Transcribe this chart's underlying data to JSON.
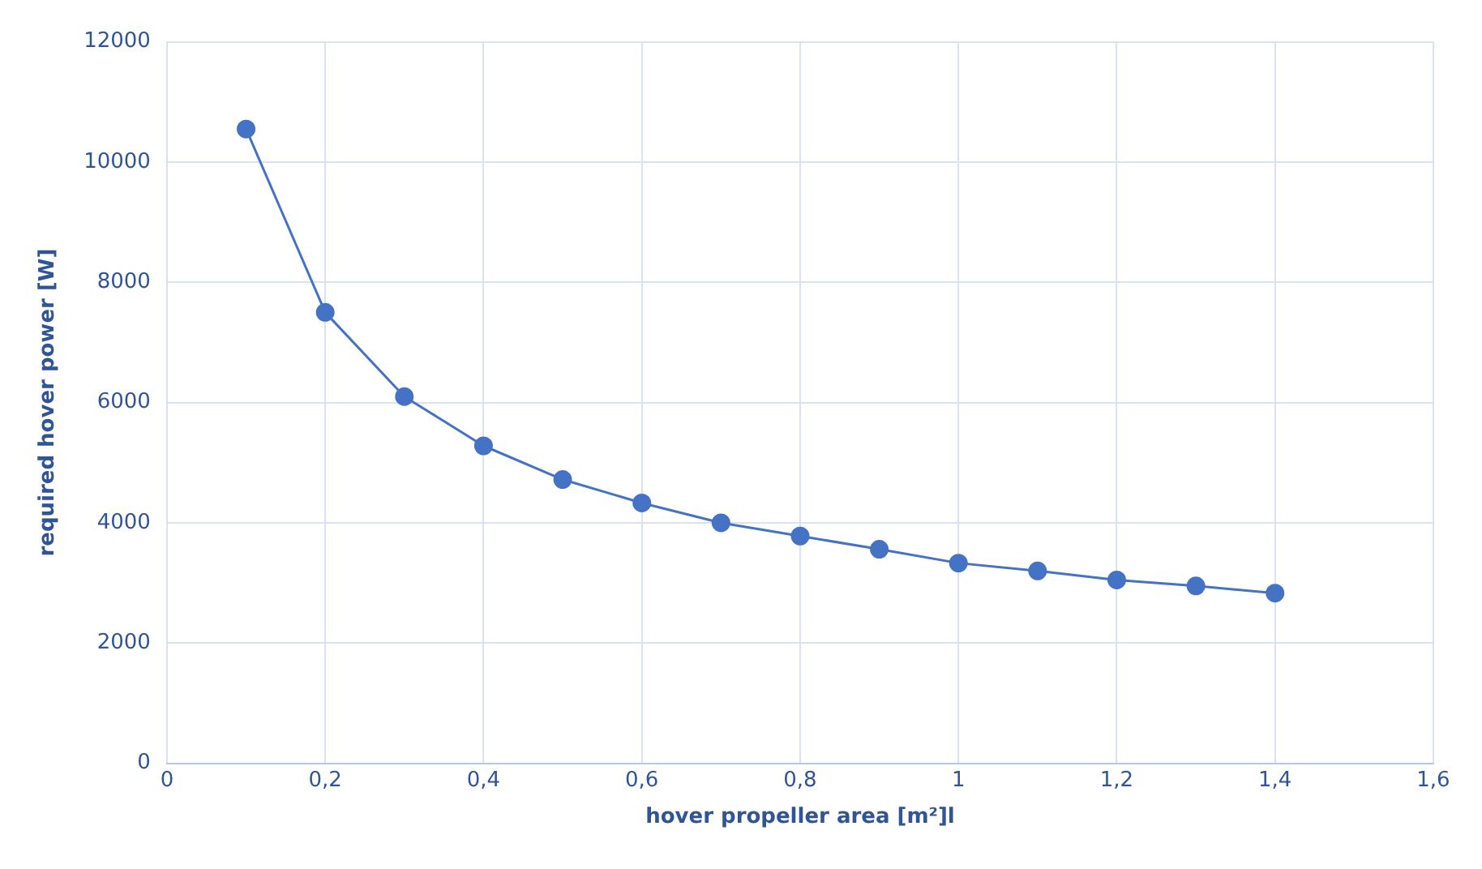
{
  "chart_data": {
    "type": "line",
    "xlabel": "hover propeller area [m²]l",
    "ylabel": "required hover power [W]",
    "x": [
      0.1,
      0.2,
      0.3,
      0.4,
      0.5,
      0.6,
      0.7,
      0.8,
      0.9,
      1.0,
      1.1,
      1.2,
      1.3,
      1.4
    ],
    "series": [
      {
        "color": "#4472c4",
        "values": [
          10550,
          7500,
          6100,
          5280,
          4720,
          4330,
          4000,
          3780,
          3560,
          3330,
          3200,
          3050,
          2950,
          2830
        ]
      }
    ],
    "xlim": [
      0,
      1.6
    ],
    "xticks": [
      0,
      {
        "value": 0.2,
        "label": "0,2"
      },
      {
        "value": 0.4,
        "label": "0,4"
      },
      {
        "value": 0.6,
        "label": "0,6"
      },
      {
        "value": 0.8,
        "label": "0,8"
      },
      1,
      {
        "value": 1.2,
        "label": "1,2"
      },
      {
        "value": 1.4,
        "label": "1,4"
      },
      {
        "value": 1.6,
        "label": "1,6"
      }
    ],
    "ylim": [
      0,
      12000
    ],
    "yticks": [
      0,
      2000,
      4000,
      6000,
      8000,
      10000,
      12000
    ],
    "grid": true,
    "legend": false,
    "marker": "circle",
    "line_style": "solid"
  }
}
